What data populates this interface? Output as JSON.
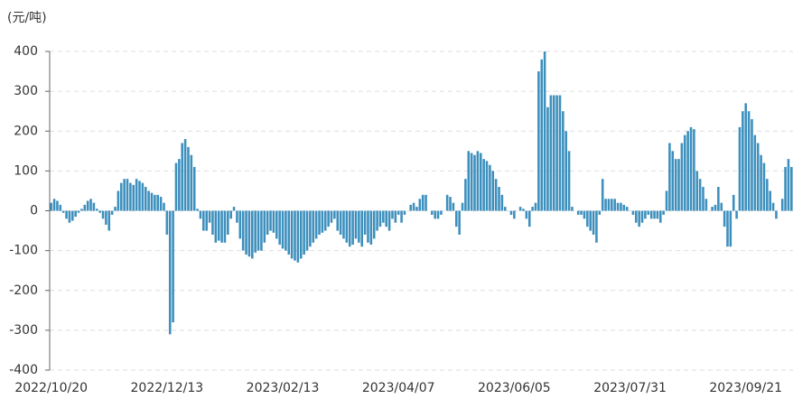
{
  "chart_data": {
    "type": "bar",
    "y_label": "(元/吨)",
    "categories": [
      "2022/10/20",
      null,
      null,
      null,
      null,
      null,
      null,
      null,
      null,
      null,
      null,
      null,
      null,
      null,
      null,
      null,
      null,
      null,
      null,
      null,
      null,
      null,
      null,
      null,
      null,
      null,
      null,
      null,
      null,
      null,
      null,
      null,
      null,
      null,
      null,
      null,
      null,
      null,
      "2022/12/13",
      null,
      null,
      null,
      null,
      null,
      null,
      null,
      null,
      null,
      null,
      null,
      null,
      null,
      null,
      null,
      null,
      null,
      null,
      null,
      null,
      null,
      null,
      null,
      null,
      null,
      null,
      null,
      null,
      null,
      null,
      null,
      null,
      null,
      null,
      null,
      null,
      null,
      "2023/02/13",
      null,
      null,
      null,
      null,
      null,
      null,
      null,
      null,
      null,
      null,
      null,
      null,
      null,
      null,
      null,
      null,
      null,
      null,
      null,
      null,
      null,
      null,
      null,
      null,
      null,
      null,
      null,
      null,
      null,
      null,
      null,
      null,
      null,
      null,
      null,
      null,
      null,
      "2023/04/07",
      null,
      null,
      null,
      null,
      null,
      null,
      null,
      null,
      null,
      null,
      null,
      null,
      null,
      null,
      null,
      null,
      null,
      null,
      null,
      null,
      null,
      null,
      null,
      null,
      null,
      null,
      null,
      null,
      null,
      null,
      null,
      null,
      null,
      null,
      null,
      null,
      null,
      "2023/06/05",
      null,
      null,
      null,
      null,
      null,
      null,
      null,
      null,
      null,
      null,
      null,
      null,
      null,
      null,
      null,
      null,
      null,
      null,
      null,
      null,
      null,
      null,
      null,
      null,
      null,
      null,
      null,
      null,
      null,
      null,
      null,
      null,
      null,
      null,
      null,
      null,
      null,
      "2023/07/31",
      null,
      null,
      null,
      null,
      null,
      null,
      null,
      null,
      null,
      null,
      null,
      null,
      null,
      null,
      null,
      null,
      null,
      null,
      null,
      null,
      null,
      null,
      null,
      null,
      null,
      null,
      null,
      null,
      null,
      null,
      null,
      null,
      null,
      null,
      null,
      null,
      null,
      "2023/09/21",
      null,
      null,
      null,
      null,
      null,
      null,
      null,
      null,
      null,
      null,
      null,
      null,
      null,
      null,
      null
    ],
    "values": [
      20,
      30,
      25,
      15,
      -5,
      -20,
      -30,
      -25,
      -15,
      -5,
      5,
      15,
      25,
      30,
      20,
      5,
      -5,
      -20,
      -35,
      -50,
      -10,
      10,
      50,
      70,
      80,
      80,
      70,
      65,
      80,
      75,
      70,
      60,
      50,
      45,
      40,
      40,
      35,
      20,
      -60,
      -310,
      -280,
      120,
      130,
      170,
      180,
      160,
      140,
      110,
      5,
      -20,
      -50,
      -50,
      -30,
      -60,
      -80,
      -75,
      -80,
      -80,
      -60,
      -20,
      10,
      -30,
      -70,
      -100,
      -110,
      -115,
      -120,
      -105,
      -100,
      -100,
      -80,
      -60,
      -50,
      -55,
      -70,
      -85,
      -95,
      -100,
      -110,
      -120,
      -125,
      -130,
      -120,
      -110,
      -100,
      -90,
      -80,
      -70,
      -60,
      -55,
      -50,
      -40,
      -30,
      -20,
      -50,
      -60,
      -70,
      -80,
      -90,
      -85,
      -70,
      -80,
      -90,
      -60,
      -80,
      -85,
      -70,
      -50,
      -40,
      -30,
      -40,
      -50,
      -20,
      -30,
      -10,
      -30,
      -10,
      0,
      15,
      20,
      10,
      30,
      40,
      40,
      0,
      -10,
      -20,
      -20,
      -10,
      0,
      40,
      35,
      20,
      -40,
      -60,
      20,
      80,
      150,
      145,
      140,
      150,
      145,
      130,
      125,
      115,
      100,
      80,
      60,
      40,
      10,
      0,
      -10,
      -20,
      0,
      10,
      5,
      -20,
      -40,
      10,
      20,
      350,
      380,
      400,
      260,
      290,
      290,
      290,
      290,
      250,
      200,
      150,
      10,
      0,
      -10,
      -10,
      -20,
      -40,
      -50,
      -60,
      -80,
      -10,
      80,
      30,
      30,
      30,
      30,
      20,
      20,
      15,
      10,
      0,
      -10,
      -30,
      -40,
      -30,
      -20,
      -10,
      -20,
      -20,
      -20,
      -30,
      -10,
      50,
      170,
      150,
      130,
      130,
      170,
      190,
      200,
      210,
      205,
      100,
      80,
      60,
      30,
      0,
      10,
      15,
      60,
      20,
      -40,
      -90,
      -90,
      40,
      -20,
      210,
      250,
      270,
      250,
      230,
      190,
      170,
      140,
      120,
      80,
      50,
      20,
      -20,
      0,
      30,
      110,
      130,
      110
    ],
    "color": "#3d8fbd",
    "ylim": [
      -400,
      400
    ],
    "yticks": [
      -400,
      -300,
      -200,
      -100,
      0,
      100,
      200,
      300,
      400
    ],
    "grid": true
  }
}
